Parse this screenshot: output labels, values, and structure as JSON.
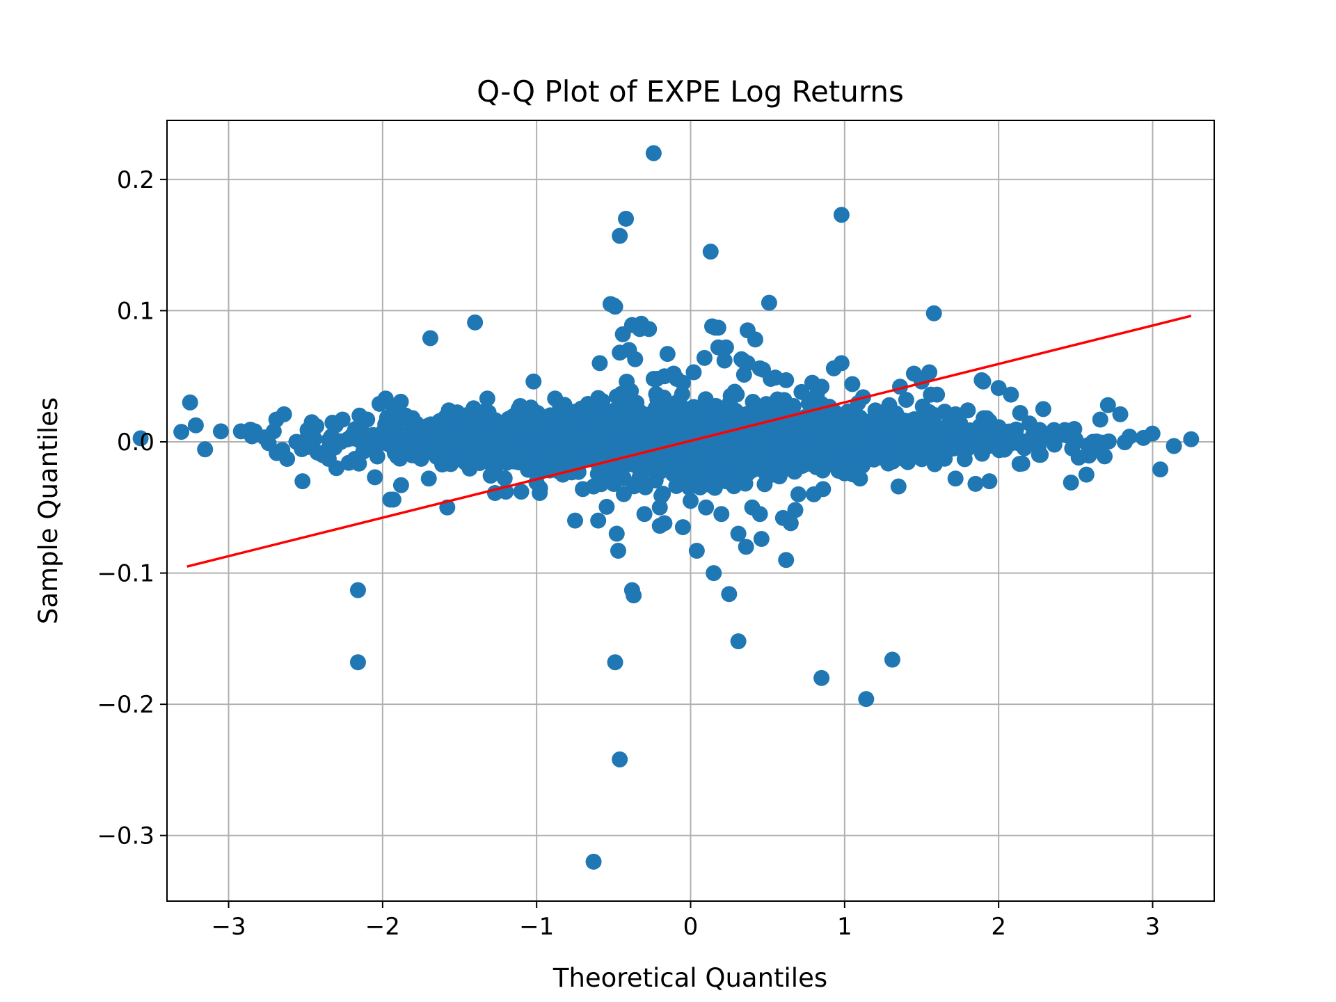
{
  "chart_data": {
    "type": "scatter",
    "title": "Q-Q Plot of EXPE Log Returns",
    "xlabel": "Theoretical Quantiles",
    "ylabel": "Sample Quantiles",
    "xlim": [
      -3.4,
      3.4
    ],
    "ylim": [
      -0.35,
      0.245
    ],
    "xticks": [
      -3,
      -2,
      -1,
      0,
      1,
      2,
      3
    ],
    "xtick_labels": [
      "−3",
      "−2",
      "−1",
      "0",
      "1",
      "2",
      "3"
    ],
    "yticks": [
      -0.3,
      -0.2,
      -0.1,
      0.0,
      0.1,
      0.2
    ],
    "ytick_labels": [
      "−0.3",
      "−0.2",
      "−0.1",
      "0.0",
      "0.1",
      "0.2"
    ],
    "grid": true,
    "colors": {
      "points": "#1f77b4",
      "reference_line": "#ff0000",
      "grid": "#b0b0b0"
    },
    "reference_line": {
      "x": [
        -3.27,
        3.25
      ],
      "y": [
        -0.095,
        0.096
      ]
    },
    "series": [
      {
        "kind": "points",
        "x": [
          -3.25,
          -3.05,
          -2.92,
          -2.83,
          -2.74,
          -2.69,
          -2.64,
          -2.62,
          -2.56,
          -2.52,
          -2.49,
          -2.46,
          -2.43,
          -2.39,
          -2.35,
          -2.3,
          -2.26,
          -2.22,
          -2.18,
          -2.15,
          -2.12,
          -2.1,
          -2.05,
          -2.02,
          -1.98,
          -1.95,
          -1.93,
          -1.88,
          -1.85,
          -1.82,
          -1.78,
          -1.7,
          -1.67,
          -1.57,
          -1.52,
          -1.38,
          -1.32,
          -1.27,
          -1.2,
          -1.08,
          -1.02,
          -0.98,
          -0.88,
          -0.83,
          -0.63,
          -0.59,
          -0.52,
          -0.49,
          -0.46,
          -0.4,
          -0.36,
          -0.32,
          -0.27,
          -0.15,
          -0.09,
          -0.05,
          0.02,
          0.09,
          0.14,
          0.18,
          0.22,
          0.33,
          0.37,
          0.42,
          0.47,
          0.52,
          0.55,
          0.62,
          0.72,
          0.79,
          0.85,
          0.93,
          0.98,
          1.05,
          1.12,
          1.2,
          1.29,
          1.36,
          1.4,
          1.45,
          1.5,
          1.56,
          1.6,
          1.65,
          1.72,
          1.8,
          1.9,
          2.0,
          2.08,
          2.14,
          2.2,
          2.29,
          2.36,
          2.44,
          2.52,
          2.57,
          2.66,
          2.71,
          2.79,
          2.85,
          2.94,
          3.05,
          3.25,
          -2.16,
          -1.93,
          -1.69,
          -1.4,
          -0.5,
          -0.46,
          -0.44,
          -0.42,
          -0.38,
          -0.33,
          -0.24,
          -0.24,
          -0.22,
          -0.17,
          -0.11,
          0.13,
          0.16,
          0.18,
          0.23,
          0.34,
          0.37,
          0.45,
          0.51,
          0.98,
          1.58,
          1.89,
          1.55,
          2.43,
          2.47,
          1.94,
          -2.16,
          -0.49,
          -0.48,
          -0.47,
          -0.46,
          -0.38,
          -0.37,
          -0.2,
          -0.17,
          -0.05,
          0.04,
          0.15,
          0.25,
          0.31,
          0.31,
          0.36,
          0.46,
          0.62,
          0.65,
          0.85,
          1.14,
          1.31,
          -0.63,
          1.0,
          0.96,
          1.72,
          1.85,
          -1.58,
          -1.1,
          -0.75,
          0.0,
          0.6,
          0.68,
          0.8,
          0.86,
          1.1,
          1.35,
          -0.6,
          -0.3,
          0.1,
          0.4,
          0.7,
          -0.7,
          -0.2,
          0.2,
          0.45
        ],
        "y": [
          0.03,
          0.008,
          0.008,
          0.008,
          -0.001,
          0.017,
          0.021,
          -0.013,
          0.0,
          -0.03,
          -0.004,
          0.015,
          0.012,
          -0.01,
          -0.013,
          -0.02,
          0.017,
          -0.016,
          -0.013,
          0.02,
          0.006,
          0.017,
          -0.027,
          0.029,
          0.033,
          -0.044,
          0.026,
          -0.033,
          0.02,
          0.018,
          0.014,
          -0.028,
          0.007,
          0.024,
          0.02,
          0.019,
          0.033,
          -0.039,
          -0.038,
          0.025,
          0.046,
          -0.039,
          0.033,
          -0.025,
          -0.034,
          0.06,
          0.105,
          0.103,
          0.068,
          0.07,
          0.063,
          0.09,
          0.086,
          0.067,
          0.048,
          0.045,
          0.053,
          0.064,
          0.088,
          0.072,
          0.062,
          0.063,
          0.085,
          0.078,
          0.055,
          0.048,
          0.049,
          0.047,
          0.038,
          0.045,
          0.042,
          0.056,
          0.06,
          0.044,
          0.034,
          0.024,
          0.028,
          0.042,
          0.032,
          0.052,
          0.046,
          0.036,
          0.036,
          0.023,
          0.021,
          0.024,
          0.046,
          0.041,
          0.036,
          0.022,
          0.014,
          0.025,
          0.009,
          0.005,
          -0.012,
          -0.025,
          0.017,
          0.028,
          0.021,
          0.004,
          0.003,
          -0.021,
          0.002,
          -0.168,
          -0.044,
          0.079,
          0.091,
          0.104,
          0.157,
          0.082,
          0.17,
          0.089,
          0.086,
          0.22,
          0.048,
          0.048,
          0.05,
          0.052,
          0.145,
          0.087,
          0.087,
          0.072,
          0.062,
          0.06,
          0.056,
          0.106,
          0.173,
          0.098,
          0.047,
          0.053,
          0.009,
          -0.031,
          -0.03,
          -0.113,
          -0.168,
          -0.07,
          -0.083,
          -0.242,
          -0.113,
          -0.117,
          -0.064,
          -0.062,
          -0.065,
          -0.083,
          -0.1,
          -0.116,
          -0.152,
          -0.07,
          -0.08,
          -0.074,
          -0.09,
          -0.062,
          -0.18,
          -0.196,
          -0.166,
          -0.32,
          -0.024,
          -0.022,
          -0.028,
          -0.032,
          -0.05,
          -0.038,
          -0.06,
          -0.045,
          -0.058,
          -0.052,
          -0.04,
          -0.036,
          -0.028,
          -0.034,
          -0.06,
          -0.055,
          -0.05,
          -0.05,
          -0.04,
          -0.036,
          -0.05,
          -0.055,
          -0.055
        ]
      },
      {
        "kind": "dense_cloud",
        "count": 2400,
        "distribution": "normal theoretical quantiles, sample sd approximately 0.016"
      }
    ]
  }
}
